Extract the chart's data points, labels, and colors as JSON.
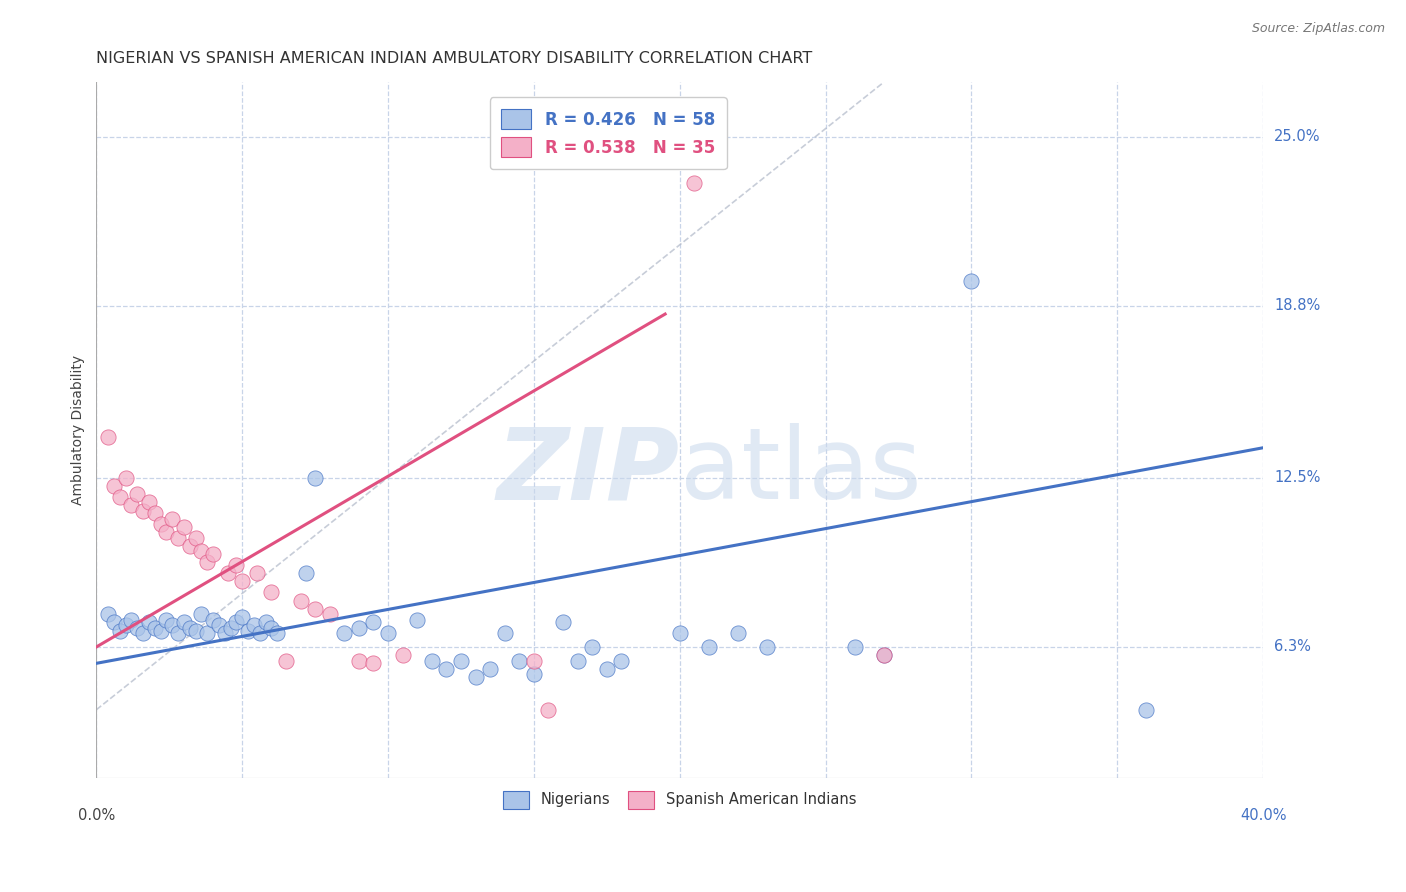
{
  "title": "NIGERIAN VS SPANISH AMERICAN INDIAN AMBULATORY DISABILITY CORRELATION CHART",
  "source": "Source: ZipAtlas.com",
  "ylabel": "Ambulatory Disability",
  "ytick_labels": [
    "6.3%",
    "12.5%",
    "18.8%",
    "25.0%"
  ],
  "ytick_values": [
    0.063,
    0.125,
    0.188,
    0.25
  ],
  "xlim": [
    0.0,
    0.4
  ],
  "ylim": [
    0.015,
    0.27
  ],
  "watermark_zip": "ZIP",
  "watermark_atlas": "atlas",
  "legend_line1": "R = 0.426   N = 58",
  "legend_line2": "R = 0.538   N = 35",
  "nigerians_scatter": [
    [
      0.004,
      0.075
    ],
    [
      0.006,
      0.072
    ],
    [
      0.008,
      0.069
    ],
    [
      0.01,
      0.071
    ],
    [
      0.012,
      0.073
    ],
    [
      0.014,
      0.07
    ],
    [
      0.016,
      0.068
    ],
    [
      0.018,
      0.072
    ],
    [
      0.02,
      0.07
    ],
    [
      0.022,
      0.069
    ],
    [
      0.024,
      0.073
    ],
    [
      0.026,
      0.071
    ],
    [
      0.028,
      0.068
    ],
    [
      0.03,
      0.072
    ],
    [
      0.032,
      0.07
    ],
    [
      0.034,
      0.069
    ],
    [
      0.036,
      0.075
    ],
    [
      0.038,
      0.068
    ],
    [
      0.04,
      0.073
    ],
    [
      0.042,
      0.071
    ],
    [
      0.044,
      0.068
    ],
    [
      0.046,
      0.07
    ],
    [
      0.048,
      0.072
    ],
    [
      0.05,
      0.074
    ],
    [
      0.052,
      0.069
    ],
    [
      0.054,
      0.071
    ],
    [
      0.056,
      0.068
    ],
    [
      0.058,
      0.072
    ],
    [
      0.06,
      0.07
    ],
    [
      0.062,
      0.068
    ],
    [
      0.072,
      0.09
    ],
    [
      0.075,
      0.125
    ],
    [
      0.085,
      0.068
    ],
    [
      0.09,
      0.07
    ],
    [
      0.095,
      0.072
    ],
    [
      0.1,
      0.068
    ],
    [
      0.11,
      0.073
    ],
    [
      0.115,
      0.058
    ],
    [
      0.12,
      0.055
    ],
    [
      0.125,
      0.058
    ],
    [
      0.13,
      0.052
    ],
    [
      0.135,
      0.055
    ],
    [
      0.14,
      0.068
    ],
    [
      0.145,
      0.058
    ],
    [
      0.15,
      0.053
    ],
    [
      0.16,
      0.072
    ],
    [
      0.165,
      0.058
    ],
    [
      0.17,
      0.063
    ],
    [
      0.175,
      0.055
    ],
    [
      0.18,
      0.058
    ],
    [
      0.2,
      0.068
    ],
    [
      0.21,
      0.063
    ],
    [
      0.22,
      0.068
    ],
    [
      0.23,
      0.063
    ],
    [
      0.26,
      0.063
    ],
    [
      0.27,
      0.06
    ],
    [
      0.3,
      0.197
    ],
    [
      0.36,
      0.04
    ]
  ],
  "spanish_scatter": [
    [
      0.004,
      0.14
    ],
    [
      0.006,
      0.122
    ],
    [
      0.008,
      0.118
    ],
    [
      0.01,
      0.125
    ],
    [
      0.012,
      0.115
    ],
    [
      0.014,
      0.119
    ],
    [
      0.016,
      0.113
    ],
    [
      0.018,
      0.116
    ],
    [
      0.02,
      0.112
    ],
    [
      0.022,
      0.108
    ],
    [
      0.024,
      0.105
    ],
    [
      0.026,
      0.11
    ],
    [
      0.028,
      0.103
    ],
    [
      0.03,
      0.107
    ],
    [
      0.032,
      0.1
    ],
    [
      0.034,
      0.103
    ],
    [
      0.036,
      0.098
    ],
    [
      0.038,
      0.094
    ],
    [
      0.04,
      0.097
    ],
    [
      0.045,
      0.09
    ],
    [
      0.048,
      0.093
    ],
    [
      0.05,
      0.087
    ],
    [
      0.055,
      0.09
    ],
    [
      0.06,
      0.083
    ],
    [
      0.065,
      0.058
    ],
    [
      0.07,
      0.08
    ],
    [
      0.075,
      0.077
    ],
    [
      0.08,
      0.075
    ],
    [
      0.09,
      0.058
    ],
    [
      0.095,
      0.057
    ],
    [
      0.105,
      0.06
    ],
    [
      0.15,
      0.058
    ],
    [
      0.155,
      0.04
    ],
    [
      0.205,
      0.233
    ],
    [
      0.27,
      0.06
    ]
  ],
  "nigerian_line_x": [
    0.0,
    0.4
  ],
  "nigerian_line_y": [
    0.057,
    0.136
  ],
  "spanish_line_x": [
    0.0,
    0.195
  ],
  "spanish_line_y": [
    0.063,
    0.185
  ],
  "dash_line_x": [
    0.0,
    0.27
  ],
  "dash_line_y": [
    0.04,
    0.27
  ],
  "nigerian_line_color": "#4472c4",
  "spanish_line_color": "#e05080",
  "nigerian_scatter_color": "#aac4e8",
  "spanish_scatter_color": "#f4b0c8",
  "scatter_size": 120,
  "scatter_alpha": 0.75,
  "background_color": "#ffffff",
  "grid_color": "#c8d4e8",
  "title_fontsize": 11.5,
  "axis_label_fontsize": 10,
  "tick_fontsize": 10.5
}
